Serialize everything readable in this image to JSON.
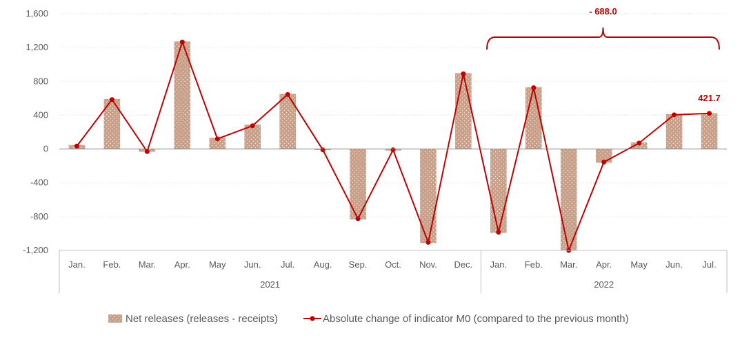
{
  "chart_data": {
    "type": "bar+line",
    "title": "",
    "xlabel": "",
    "ylabel": "",
    "ylim": [
      -1200,
      1600
    ],
    "yticks": [
      "1,600",
      "1,200",
      "800",
      "400",
      "0",
      "-400",
      "-800",
      "-1,200"
    ],
    "ytick_values": [
      1600,
      1200,
      800,
      400,
      0,
      -400,
      -800,
      -1200
    ],
    "categories": [
      "Jan.",
      "Feb.",
      "Mar.",
      "Apr.",
      "May",
      "Jun.",
      "Jul.",
      "Aug.",
      "Sep.",
      "Oct.",
      "Nov.",
      "Dec.",
      "Jan.",
      "Feb.",
      "Mar.",
      "Apr.",
      "May",
      "Jun.",
      "Jul."
    ],
    "groups": [
      {
        "label": "2021",
        "start": 0,
        "end": 11
      },
      {
        "label": "2022",
        "start": 12,
        "end": 18
      }
    ],
    "grid": true,
    "legend_position": "bottom",
    "series": [
      {
        "name": "Net releases (releases - receipts)",
        "kind": "bar",
        "color": "#C9A08A",
        "values": [
          45,
          590,
          -30,
          1270,
          130,
          285,
          650,
          -10,
          -830,
          -15,
          -1110,
          895,
          -990,
          730,
          -1200,
          -160,
          75,
          410,
          420
        ]
      },
      {
        "name": "Absolute change of indicator M0 (compared to the previous month)",
        "kind": "line",
        "color": "#C00000",
        "values": [
          35,
          585,
          -30,
          1265,
          120,
          275,
          645,
          -10,
          -825,
          -10,
          -1105,
          890,
          -985,
          725,
          -1200,
          -155,
          70,
          405,
          421.7
        ]
      }
    ],
    "annotations": {
      "bracket_label": "- 688.0",
      "last_point_label": "421.7"
    }
  }
}
